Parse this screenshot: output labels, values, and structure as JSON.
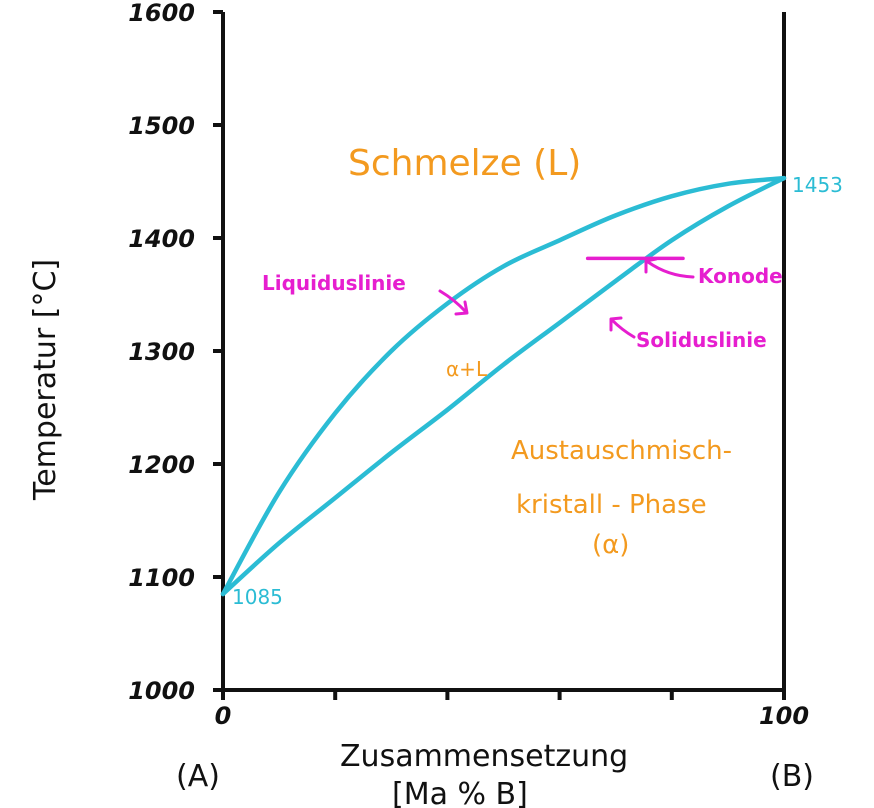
{
  "colors": {
    "axis": "#111111",
    "curves": "#2bbcd4",
    "annotation": "#e61ecf",
    "phase_text": "#f39a1f"
  },
  "chart_data": {
    "type": "phase-diagram",
    "x_axis": {
      "label_line1": "Zusammensetzung",
      "label_line2": "[Ma %  B]",
      "range": [
        0,
        100
      ],
      "tick_labels": [
        "0",
        "100"
      ],
      "end_labels": [
        "(A)",
        "(B)"
      ]
    },
    "y_axis": {
      "label": "Temperatur [°C]",
      "range": [
        1000,
        1600
      ],
      "tick_labels": [
        "1000",
        "1100",
        "1200",
        "1300",
        "1400",
        "1500",
        "1600"
      ]
    },
    "liquidus": {
      "name": "Liquiduslinie",
      "points": [
        [
          0,
          1085
        ],
        [
          10,
          1175
        ],
        [
          20,
          1245
        ],
        [
          30,
          1300
        ],
        [
          40,
          1342
        ],
        [
          50,
          1375
        ],
        [
          60,
          1398
        ],
        [
          70,
          1420
        ],
        [
          80,
          1437
        ],
        [
          90,
          1448
        ],
        [
          100,
          1453
        ]
      ]
    },
    "solidus": {
      "name": "Solidusline",
      "points": [
        [
          0,
          1085
        ],
        [
          10,
          1130
        ],
        [
          20,
          1170
        ],
        [
          30,
          1210
        ],
        [
          40,
          1248
        ],
        [
          50,
          1288
        ],
        [
          60,
          1325
        ],
        [
          70,
          1362
        ],
        [
          80,
          1398
        ],
        [
          90,
          1428
        ],
        [
          100,
          1453
        ]
      ]
    },
    "melting_points": {
      "A": "1085",
      "B": "1453"
    },
    "tie_line": {
      "name": "Konode",
      "temperature": 1382,
      "x_from": 65,
      "x_to": 82
    },
    "regions": {
      "liquid": "Schmelze (L)",
      "two_phase": "α+L",
      "solid_line1": "Austauschmisch-",
      "solid_line2": "kristall - Phase",
      "solid_line3": "(α)"
    },
    "annotations": {
      "liquidus": "Liquiduslinie",
      "solidus": "Soliduslinie",
      "tie_line": "Konode"
    }
  }
}
